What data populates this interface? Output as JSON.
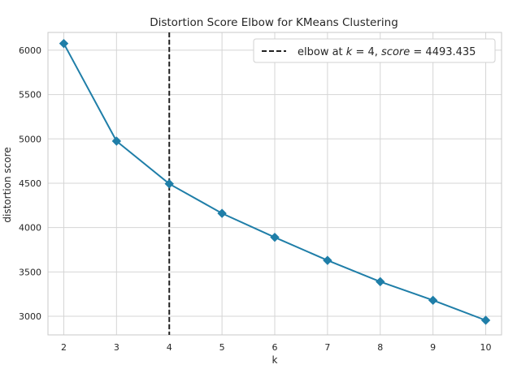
{
  "chart_data": {
    "type": "line",
    "title": "Distortion Score Elbow for KMeans Clustering",
    "xlabel": "k",
    "ylabel": "distortion score",
    "x": [
      2,
      3,
      4,
      5,
      6,
      7,
      8,
      9,
      10
    ],
    "series": [
      {
        "values": [
          6075,
          4975,
          4493.435,
          4160,
          3890,
          3630,
          3390,
          3180,
          2955
        ],
        "color": "#1f7ea8",
        "marker": "diamond"
      }
    ],
    "xlim": [
      1.7,
      10.3
    ],
    "ylim": [
      2790,
      6200
    ],
    "xticks": [
      2,
      3,
      4,
      5,
      6,
      7,
      8,
      9,
      10
    ],
    "yticks": [
      3000,
      3500,
      4000,
      4500,
      5000,
      5500,
      6000
    ],
    "grid": true,
    "elbow": {
      "k": 4,
      "score": "4493.435",
      "line_color": "#222222",
      "line_style": "dashed"
    },
    "legend": {
      "position": "top-right",
      "prefix": "elbow at ",
      "k_symbol": "k",
      "equals": " = ",
      "k_value": "4",
      "separator": ", ",
      "score_symbol": "score",
      "score_value": "4493.435"
    },
    "colors": {
      "grid": "#d5d5d5",
      "spine": "#c8c8c8",
      "background": "#ffffff"
    }
  }
}
